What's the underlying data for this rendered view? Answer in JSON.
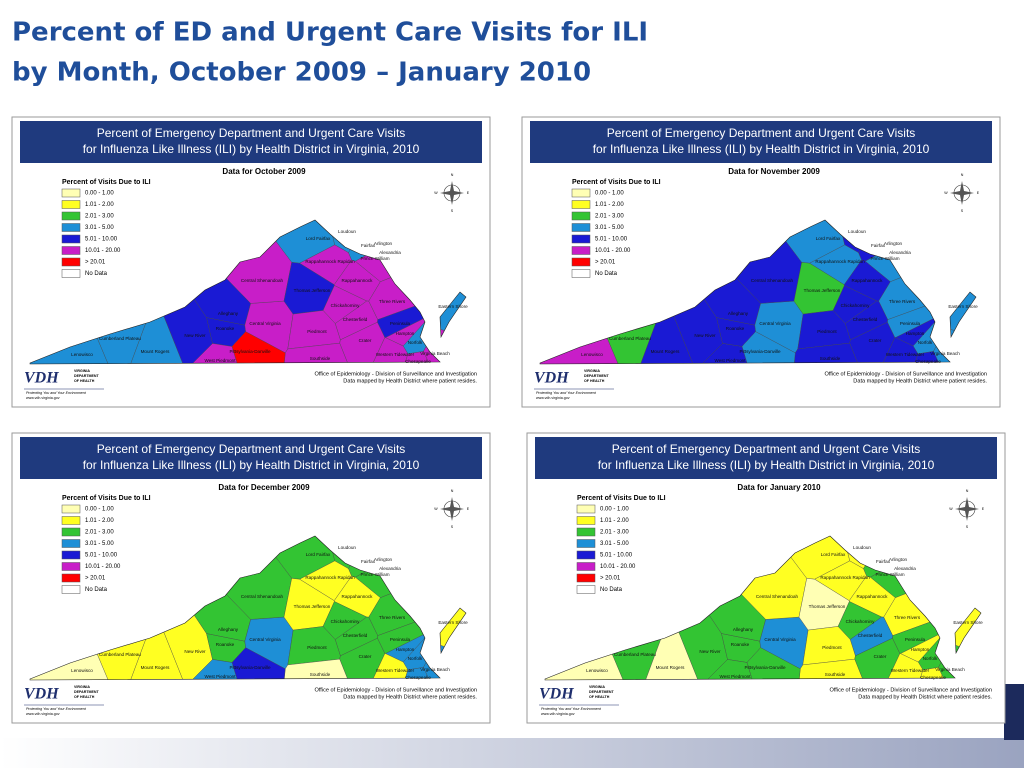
{
  "title": [
    "Percent of ED and Urgent Care Visits for ILI",
    "by Month, October 2009 – January 2010"
  ],
  "panel": {
    "banner": [
      "Percent of Emergency Department and Urgent Care Visits",
      "for Influenza Like Illness (ILI) by Health District in Virginia, 2010"
    ],
    "compass": [
      "N",
      "S",
      "E",
      "W"
    ],
    "logo": "VDH",
    "agency": [
      "VIRGINIA",
      "DEPARTMENT",
      "OF HEALTH"
    ],
    "tagline": "Protecting You and Your Environment",
    "url": "www.vdh.virginia.gov",
    "credit": [
      "Office of Epidemiology - Division of Surveillance and Investigation",
      "Data mapped by Health District where patient resides."
    ]
  },
  "legend": {
    "title": "Percent of Visits Due to ILI",
    "items": [
      {
        "label": "0.00 - 1.00",
        "color": "#ffffb4"
      },
      {
        "label": "1.01 - 2.00",
        "color": "#ffff22"
      },
      {
        "label": "2.01 - 3.00",
        "color": "#33c433"
      },
      {
        "label": "3.01 - 5.00",
        "color": "#1e8fd6"
      },
      {
        "label": "5.01 - 10.00",
        "color": "#1a1ad4"
      },
      {
        "label": "10.01 - 20.00",
        "color": "#c81ec8"
      },
      {
        "label": "> 20.01",
        "color": "#ff0000"
      },
      {
        "label": "No Data",
        "color": "#ffffff"
      }
    ]
  },
  "districts": [
    "Lenowisco",
    "Cumberland Plateau",
    "Mount Rogers",
    "New River",
    "Roanoke",
    "Alleghany",
    "Central Virginia",
    "Central Shenandoah",
    "Lord Fairfax",
    "Loudoun",
    "Fairfax",
    "Arlington",
    "Alexandria",
    "Prince William",
    "Rappahannock Rapidan",
    "Thomas Jefferson",
    "Rappahannock",
    "Three Rivers",
    "Chickahominy",
    "Chesterfield",
    "Piedmont",
    "Southside",
    "Pittsylvania-Danville",
    "West Piedmont",
    "Crater",
    "Hampton",
    "Peninsula",
    "Norfolk",
    "Western Tidewater",
    "Virginia Beach",
    "Chesapeake",
    "Eastern Shore"
  ],
  "maps": [
    {
      "subtitle": "Data for October 2009",
      "levels": [
        3,
        3,
        3,
        4,
        4,
        4,
        5,
        5,
        3,
        3,
        3,
        3,
        3,
        5,
        5,
        4,
        5,
        5,
        5,
        5,
        5,
        5,
        6,
        5,
        5,
        5,
        4,
        3,
        5,
        5,
        5,
        3
      ]
    },
    {
      "subtitle": "Data for November 2009",
      "levels": [
        5,
        2,
        4,
        4,
        4,
        4,
        3,
        4,
        3,
        4,
        4,
        3,
        3,
        3,
        3,
        2,
        4,
        3,
        4,
        4,
        4,
        4,
        3,
        4,
        4,
        4,
        3,
        3,
        4,
        3,
        4,
        3
      ]
    },
    {
      "subtitle": "Data for December 2009",
      "levels": [
        0,
        1,
        1,
        1,
        2,
        2,
        3,
        2,
        2,
        2,
        2,
        1,
        2,
        2,
        1,
        1,
        1,
        2,
        2,
        2,
        2,
        0,
        4,
        3,
        2,
        3,
        2,
        3,
        1,
        3,
        3,
        1
      ]
    },
    {
      "subtitle": "Data for January 2010",
      "levels": [
        0,
        2,
        0,
        2,
        2,
        2,
        3,
        1,
        1,
        1,
        2,
        1,
        2,
        2,
        1,
        0,
        1,
        1,
        2,
        3,
        1,
        1,
        2,
        2,
        2,
        1,
        2,
        2,
        1,
        2,
        1,
        1
      ]
    }
  ]
}
